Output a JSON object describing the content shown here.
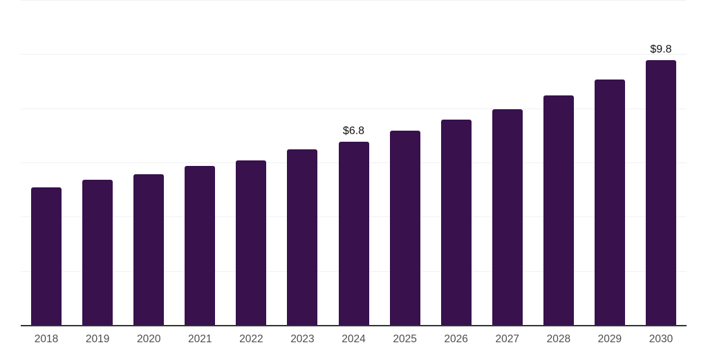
{
  "chart_data": {
    "type": "bar",
    "title": "",
    "xlabel": "",
    "ylabel": "",
    "categories": [
      "2018",
      "2019",
      "2020",
      "2021",
      "2022",
      "2023",
      "2024",
      "2025",
      "2026",
      "2027",
      "2028",
      "2029",
      "2030"
    ],
    "values": [
      5.1,
      5.4,
      5.6,
      5.9,
      6.1,
      6.5,
      6.8,
      7.2,
      7.6,
      8.0,
      8.5,
      9.1,
      9.8
    ],
    "annotations": [
      {
        "category": "2024",
        "text": "$6.8"
      },
      {
        "category": "2030",
        "text": "$9.8"
      }
    ],
    "ylim": [
      0,
      12
    ],
    "gridline_values": [
      2,
      4,
      6,
      8,
      10,
      12
    ],
    "grid": "horizontal",
    "legend": "none",
    "colors": {
      "bar": "#38114D",
      "grid": "#F1F0F3",
      "axis": "#333333",
      "tick_label": "#4D4D4D",
      "data_label": "#111111",
      "background": "#FFFFFF"
    }
  }
}
